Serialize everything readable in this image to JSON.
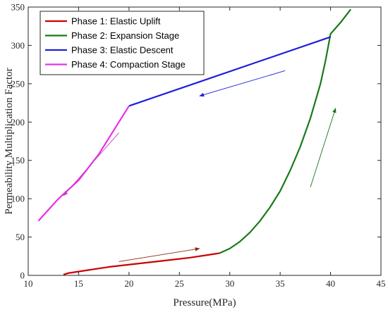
{
  "chart_data": {
    "type": "line",
    "xlabel": "Pressure(MPa)",
    "ylabel": "Permeability Multiplication Factor",
    "xlim": [
      10,
      45
    ],
    "ylim": [
      0,
      350
    ],
    "xticks": [
      10,
      15,
      20,
      25,
      30,
      35,
      40,
      45
    ],
    "yticks": [
      0,
      50,
      100,
      150,
      200,
      250,
      300,
      350
    ],
    "grid": false,
    "legend_position": "top-left",
    "series": [
      {
        "name": "Phase 1: Elastic Uplift",
        "color": "#cc0000",
        "points": [
          [
            13.5,
            1
          ],
          [
            14,
            3
          ],
          [
            16,
            7
          ],
          [
            18,
            11
          ],
          [
            20,
            14
          ],
          [
            22,
            17
          ],
          [
            24,
            20
          ],
          [
            26,
            23
          ],
          [
            28,
            27
          ],
          [
            29,
            29
          ]
        ]
      },
      {
        "name": "Phase 2: Expansion Stage",
        "color": "#1a7a1a",
        "points": [
          [
            29,
            29
          ],
          [
            30,
            35
          ],
          [
            31,
            44
          ],
          [
            32,
            56
          ],
          [
            33,
            71
          ],
          [
            34,
            89
          ],
          [
            35,
            110
          ],
          [
            36,
            137
          ],
          [
            37,
            168
          ],
          [
            38,
            205
          ],
          [
            39,
            250
          ],
          [
            39.5,
            280
          ],
          [
            40,
            315
          ],
          [
            41,
            330
          ],
          [
            42,
            347
          ]
        ]
      },
      {
        "name": "Phase 3: Elastic Descent",
        "color": "#1f1fd9",
        "points": [
          [
            40,
            311
          ],
          [
            20,
            221
          ]
        ]
      },
      {
        "name": "Phase 4: Compaction Stage",
        "color": "#e830e8",
        "points": [
          [
            20,
            221
          ],
          [
            19,
            200
          ],
          [
            17,
            158
          ],
          [
            15,
            124
          ],
          [
            13,
            100
          ],
          [
            11,
            71
          ]
        ]
      }
    ],
    "arrows": [
      {
        "color": "#8b2a0a",
        "from": [
          19,
          18
        ],
        "to": [
          27,
          35
        ]
      },
      {
        "color": "#1a7a1a",
        "from": [
          38,
          115
        ],
        "to": [
          40.5,
          218
        ]
      },
      {
        "color": "#1f1fd9",
        "from": [
          35.5,
          267
        ],
        "to": [
          27,
          234
        ]
      },
      {
        "color": "#c040c0",
        "from": [
          19,
          186
        ],
        "to": [
          13.5,
          104
        ]
      }
    ]
  }
}
